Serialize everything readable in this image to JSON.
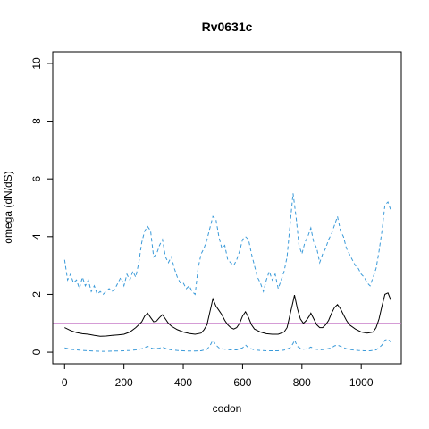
{
  "chart_data": {
    "type": "line",
    "title": "Rv0631c",
    "xlabel": "codon",
    "ylabel": "omega (dN/dS)",
    "xlim": [
      -40,
      1135
    ],
    "ylim": [
      -0.4,
      10.4
    ],
    "x_ticks": [
      0,
      200,
      400,
      600,
      800,
      1000
    ],
    "y_ticks": [
      0,
      2,
      4,
      6,
      8,
      10
    ],
    "reference_line": {
      "y": 1,
      "color": "#c77bc8"
    },
    "series": [
      {
        "role": "upper",
        "color": "#3a9ad9",
        "dash": "dashed",
        "points": [
          [
            0,
            3.2
          ],
          [
            10,
            2.5
          ],
          [
            20,
            2.7
          ],
          [
            30,
            2.4
          ],
          [
            40,
            2.5
          ],
          [
            50,
            2.2
          ],
          [
            60,
            2.6
          ],
          [
            70,
            2.3
          ],
          [
            80,
            2.5
          ],
          [
            90,
            2.1
          ],
          [
            100,
            2.3
          ],
          [
            110,
            2.0
          ],
          [
            120,
            2.1
          ],
          [
            130,
            2.0
          ],
          [
            140,
            2.1
          ],
          [
            150,
            2.2
          ],
          [
            160,
            2.1
          ],
          [
            170,
            2.2
          ],
          [
            180,
            2.4
          ],
          [
            190,
            2.6
          ],
          [
            200,
            2.3
          ],
          [
            210,
            2.7
          ],
          [
            220,
            2.5
          ],
          [
            230,
            2.8
          ],
          [
            240,
            2.6
          ],
          [
            250,
            3.1
          ],
          [
            260,
            3.8
          ],
          [
            270,
            4.2
          ],
          [
            280,
            4.35
          ],
          [
            290,
            4.2
          ],
          [
            300,
            3.3
          ],
          [
            310,
            3.4
          ],
          [
            320,
            3.7
          ],
          [
            330,
            3.9
          ],
          [
            340,
            3.3
          ],
          [
            350,
            3.1
          ],
          [
            360,
            3.3
          ],
          [
            370,
            2.9
          ],
          [
            380,
            2.6
          ],
          [
            390,
            2.4
          ],
          [
            400,
            2.4
          ],
          [
            410,
            2.2
          ],
          [
            420,
            2.3
          ],
          [
            430,
            2.1
          ],
          [
            440,
            2.0
          ],
          [
            450,
            2.9
          ],
          [
            460,
            3.4
          ],
          [
            470,
            3.6
          ],
          [
            480,
            3.9
          ],
          [
            490,
            4.3
          ],
          [
            500,
            4.7
          ],
          [
            510,
            4.6
          ],
          [
            520,
            4.0
          ],
          [
            530,
            3.6
          ],
          [
            540,
            3.7
          ],
          [
            550,
            3.2
          ],
          [
            560,
            3.1
          ],
          [
            570,
            3.0
          ],
          [
            580,
            3.2
          ],
          [
            590,
            3.5
          ],
          [
            600,
            3.9
          ],
          [
            610,
            4.0
          ],
          [
            620,
            3.9
          ],
          [
            630,
            3.4
          ],
          [
            640,
            3.0
          ],
          [
            650,
            2.6
          ],
          [
            660,
            2.4
          ],
          [
            670,
            2.1
          ],
          [
            680,
            2.5
          ],
          [
            690,
            2.8
          ],
          [
            700,
            2.5
          ],
          [
            710,
            2.7
          ],
          [
            720,
            2.2
          ],
          [
            730,
            2.5
          ],
          [
            740,
            2.8
          ],
          [
            750,
            3.3
          ],
          [
            760,
            4.4
          ],
          [
            770,
            5.5
          ],
          [
            780,
            4.7
          ],
          [
            790,
            3.7
          ],
          [
            800,
            3.4
          ],
          [
            810,
            3.8
          ],
          [
            820,
            4.0
          ],
          [
            830,
            4.3
          ],
          [
            840,
            3.8
          ],
          [
            850,
            3.6
          ],
          [
            860,
            3.1
          ],
          [
            870,
            3.4
          ],
          [
            880,
            3.6
          ],
          [
            890,
            3.9
          ],
          [
            900,
            4.1
          ],
          [
            910,
            4.4
          ],
          [
            920,
            4.7
          ],
          [
            930,
            4.2
          ],
          [
            940,
            4.0
          ],
          [
            950,
            3.6
          ],
          [
            960,
            3.4
          ],
          [
            970,
            3.2
          ],
          [
            980,
            3.0
          ],
          [
            990,
            2.9
          ],
          [
            1000,
            2.7
          ],
          [
            1010,
            2.6
          ],
          [
            1020,
            2.4
          ],
          [
            1030,
            2.3
          ],
          [
            1040,
            2.6
          ],
          [
            1050,
            2.9
          ],
          [
            1060,
            3.5
          ],
          [
            1070,
            4.2
          ],
          [
            1080,
            5.1
          ],
          [
            1090,
            5.2
          ],
          [
            1100,
            4.9
          ]
        ]
      },
      {
        "role": "estimate",
        "color": "#000000",
        "dash": "solid",
        "points": [
          [
            0,
            0.85
          ],
          [
            20,
            0.75
          ],
          [
            40,
            0.68
          ],
          [
            60,
            0.64
          ],
          [
            80,
            0.62
          ],
          [
            100,
            0.58
          ],
          [
            120,
            0.55
          ],
          [
            140,
            0.56
          ],
          [
            160,
            0.58
          ],
          [
            180,
            0.6
          ],
          [
            200,
            0.62
          ],
          [
            220,
            0.7
          ],
          [
            240,
            0.85
          ],
          [
            260,
            1.05
          ],
          [
            270,
            1.25
          ],
          [
            280,
            1.35
          ],
          [
            290,
            1.2
          ],
          [
            300,
            1.05
          ],
          [
            310,
            1.08
          ],
          [
            320,
            1.2
          ],
          [
            330,
            1.3
          ],
          [
            340,
            1.15
          ],
          [
            350,
            1.0
          ],
          [
            360,
            0.9
          ],
          [
            380,
            0.78
          ],
          [
            400,
            0.7
          ],
          [
            420,
            0.65
          ],
          [
            440,
            0.62
          ],
          [
            460,
            0.66
          ],
          [
            470,
            0.78
          ],
          [
            480,
            0.95
          ],
          [
            490,
            1.4
          ],
          [
            500,
            1.85
          ],
          [
            510,
            1.6
          ],
          [
            520,
            1.45
          ],
          [
            530,
            1.3
          ],
          [
            540,
            1.1
          ],
          [
            550,
            0.95
          ],
          [
            560,
            0.85
          ],
          [
            570,
            0.8
          ],
          [
            580,
            0.85
          ],
          [
            590,
            1.0
          ],
          [
            600,
            1.25
          ],
          [
            610,
            1.4
          ],
          [
            620,
            1.2
          ],
          [
            630,
            0.95
          ],
          [
            640,
            0.8
          ],
          [
            660,
            0.7
          ],
          [
            680,
            0.64
          ],
          [
            700,
            0.62
          ],
          [
            720,
            0.62
          ],
          [
            740,
            0.7
          ],
          [
            750,
            0.85
          ],
          [
            760,
            1.3
          ],
          [
            770,
            1.75
          ],
          [
            775,
            1.98
          ],
          [
            785,
            1.5
          ],
          [
            795,
            1.15
          ],
          [
            805,
            1.0
          ],
          [
            815,
            1.1
          ],
          [
            825,
            1.25
          ],
          [
            830,
            1.35
          ],
          [
            840,
            1.15
          ],
          [
            850,
            0.95
          ],
          [
            860,
            0.85
          ],
          [
            870,
            0.85
          ],
          [
            880,
            0.95
          ],
          [
            890,
            1.1
          ],
          [
            900,
            1.35
          ],
          [
            910,
            1.55
          ],
          [
            920,
            1.65
          ],
          [
            930,
            1.5
          ],
          [
            940,
            1.3
          ],
          [
            950,
            1.1
          ],
          [
            960,
            0.95
          ],
          [
            980,
            0.8
          ],
          [
            1000,
            0.7
          ],
          [
            1020,
            0.66
          ],
          [
            1040,
            0.7
          ],
          [
            1050,
            0.85
          ],
          [
            1060,
            1.15
          ],
          [
            1070,
            1.6
          ],
          [
            1080,
            2.0
          ],
          [
            1090,
            2.05
          ],
          [
            1100,
            1.8
          ]
        ]
      },
      {
        "role": "lower",
        "color": "#3a9ad9",
        "dash": "dashed",
        "points": [
          [
            0,
            0.15
          ],
          [
            20,
            0.1
          ],
          [
            40,
            0.08
          ],
          [
            60,
            0.06
          ],
          [
            80,
            0.05
          ],
          [
            100,
            0.04
          ],
          [
            120,
            0.03
          ],
          [
            140,
            0.03
          ],
          [
            160,
            0.04
          ],
          [
            180,
            0.04
          ],
          [
            200,
            0.05
          ],
          [
            220,
            0.06
          ],
          [
            240,
            0.08
          ],
          [
            260,
            0.12
          ],
          [
            270,
            0.16
          ],
          [
            280,
            0.2
          ],
          [
            290,
            0.15
          ],
          [
            300,
            0.12
          ],
          [
            320,
            0.14
          ],
          [
            330,
            0.18
          ],
          [
            340,
            0.13
          ],
          [
            360,
            0.08
          ],
          [
            380,
            0.06
          ],
          [
            400,
            0.05
          ],
          [
            420,
            0.04
          ],
          [
            440,
            0.04
          ],
          [
            460,
            0.05
          ],
          [
            480,
            0.1
          ],
          [
            490,
            0.22
          ],
          [
            500,
            0.42
          ],
          [
            510,
            0.25
          ],
          [
            520,
            0.15
          ],
          [
            540,
            0.1
          ],
          [
            560,
            0.08
          ],
          [
            580,
            0.08
          ],
          [
            600,
            0.15
          ],
          [
            610,
            0.25
          ],
          [
            620,
            0.15
          ],
          [
            640,
            0.08
          ],
          [
            660,
            0.06
          ],
          [
            680,
            0.05
          ],
          [
            700,
            0.05
          ],
          [
            720,
            0.05
          ],
          [
            740,
            0.07
          ],
          [
            760,
            0.15
          ],
          [
            770,
            0.3
          ],
          [
            775,
            0.42
          ],
          [
            785,
            0.2
          ],
          [
            800,
            0.1
          ],
          [
            820,
            0.12
          ],
          [
            830,
            0.18
          ],
          [
            840,
            0.12
          ],
          [
            860,
            0.08
          ],
          [
            880,
            0.1
          ],
          [
            900,
            0.15
          ],
          [
            910,
            0.22
          ],
          [
            920,
            0.25
          ],
          [
            930,
            0.2
          ],
          [
            950,
            0.12
          ],
          [
            970,
            0.08
          ],
          [
            990,
            0.06
          ],
          [
            1010,
            0.05
          ],
          [
            1030,
            0.05
          ],
          [
            1050,
            0.08
          ],
          [
            1060,
            0.15
          ],
          [
            1070,
            0.25
          ],
          [
            1080,
            0.42
          ],
          [
            1090,
            0.45
          ],
          [
            1100,
            0.35
          ]
        ]
      }
    ]
  }
}
